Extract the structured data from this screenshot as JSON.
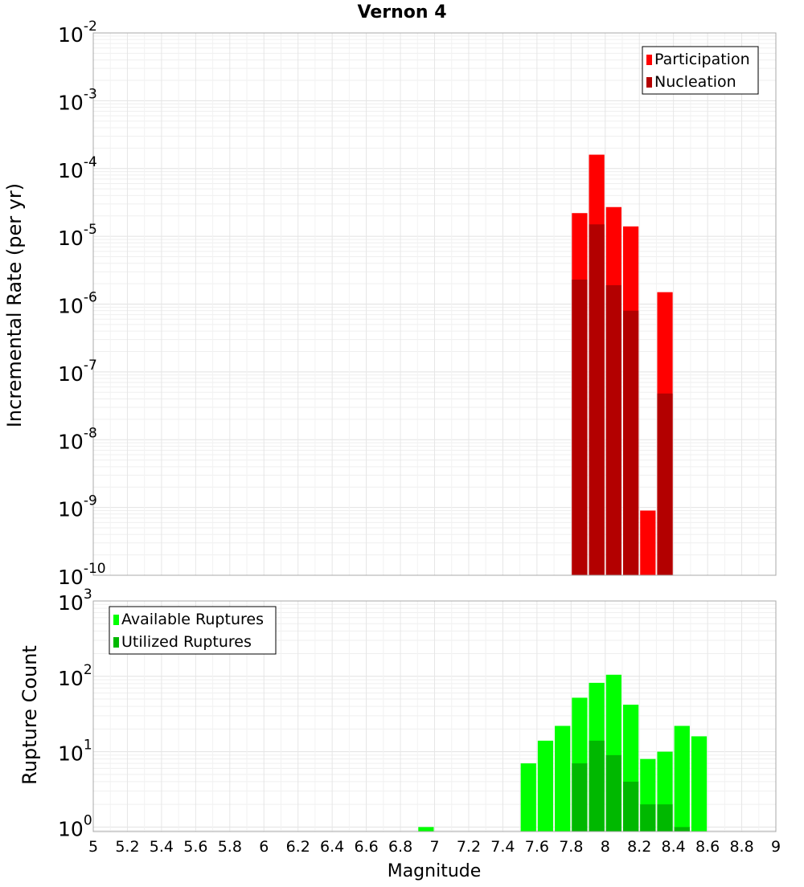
{
  "chart_data": [
    {
      "type": "bar",
      "title": "Vernon 4",
      "xlabel": "",
      "ylabel": "Incremental Rate (per yr)",
      "yscale": "log",
      "ylim_exponents": [
        -10,
        -2
      ],
      "xlim": [
        5,
        9
      ],
      "bin_width": 0.1,
      "grid": true,
      "legend_position": "top-right",
      "y_tick_labels": [
        "10^-10",
        "10^-9",
        "10^-8",
        "10^-7",
        "10^-6",
        "10^-5",
        "10^-4",
        "10^-3",
        "10^-2"
      ],
      "x": [
        7.85,
        7.95,
        8.05,
        8.15,
        8.25,
        8.35
      ],
      "series": [
        {
          "name": "Participation",
          "color": "#ff0000",
          "values": [
            2.2e-05,
            0.00016,
            2.7e-05,
            1.4e-05,
            9e-10,
            1.5e-06
          ]
        },
        {
          "name": "Nucleation",
          "color": "#b30000",
          "values": [
            2.3e-06,
            1.5e-05,
            1.9e-06,
            8e-07,
            null,
            4.8e-08
          ]
        }
      ]
    },
    {
      "type": "bar",
      "title": "",
      "xlabel": "Magnitude",
      "ylabel": "Rupture Count",
      "yscale": "log",
      "ylim_exponents": [
        -0.06,
        3
      ],
      "xlim": [
        5,
        9
      ],
      "bin_width": 0.1,
      "grid": true,
      "legend_position": "top-left",
      "y_tick_labels": [
        "10^0",
        "10^1",
        "10^2",
        "10^3"
      ],
      "x_tick_labels": [
        "5",
        "5.2",
        "5.4",
        "5.6",
        "5.8",
        "6",
        "6.2",
        "6.4",
        "6.6",
        "6.8",
        "7",
        "7.2",
        "7.4",
        "7.6",
        "7.8",
        "8",
        "8.2",
        "8.4",
        "8.6",
        "8.8",
        "9"
      ],
      "x": [
        6.95,
        7.55,
        7.65,
        7.75,
        7.85,
        7.95,
        8.05,
        8.15,
        8.25,
        8.35,
        8.45,
        8.55
      ],
      "series": [
        {
          "name": "Available Ruptures",
          "color": "#00ff00",
          "values": [
            1,
            7,
            14,
            22,
            52,
            82,
            105,
            42,
            8,
            10,
            22,
            16
          ]
        },
        {
          "name": "Utilized Ruptures",
          "color": "#00b800",
          "values": [
            null,
            null,
            null,
            null,
            7,
            14,
            9,
            4,
            2,
            2,
            1,
            null
          ]
        }
      ]
    }
  ]
}
